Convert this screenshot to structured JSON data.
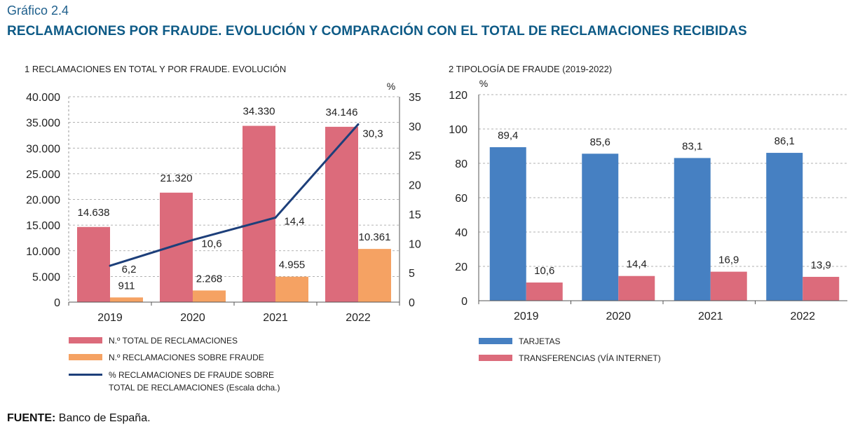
{
  "header": {
    "supertitle": "Gráfico 2.4",
    "title": "RECLAMACIONES POR FRAUDE. EVOLUCIÓN Y COMPARACIÓN CON EL TOTAL DE RECLAMACIONES RECIBIDAS"
  },
  "source": {
    "label": "FUENTE:",
    "text": "Banco de España."
  },
  "chart_data": [
    {
      "type": "bar",
      "title": "1  RECLAMACIONES EN TOTAL Y POR FRAUDE. EVOLUCIÓN",
      "categories": [
        "2019",
        "2020",
        "2021",
        "2022"
      ],
      "ylim": [
        0,
        40000
      ],
      "yticks": [
        "0",
        "5.000",
        "10.000",
        "15.000",
        "20.000",
        "25.000",
        "30.000",
        "35.000",
        "40.000"
      ],
      "y2lim": [
        0,
        35
      ],
      "y2ticks": [
        "0",
        "5",
        "10",
        "15",
        "20",
        "25",
        "30",
        "35"
      ],
      "y2label": "%",
      "grid": true,
      "series": [
        {
          "name": "N.º TOTAL DE RECLAMACIONES",
          "kind": "bar",
          "color": "#dc6b7b",
          "values": [
            14638,
            21320,
            34330,
            34146
          ],
          "labels": [
            "14.638",
            "21.320",
            "34.330",
            "34.146"
          ]
        },
        {
          "name": "N.º RECLAMACIONES SOBRE FRAUDE",
          "kind": "bar",
          "color": "#f5a263",
          "values": [
            911,
            2268,
            4955,
            10361
          ],
          "labels": [
            "911",
            "2.268",
            "4.955",
            "10.361"
          ]
        },
        {
          "name": "% RECLAMACIONES DE FRAUDE SOBRE",
          "name2": "TOTAL DE RECLAMACIONES (Escala dcha.)",
          "kind": "line",
          "axis": "right",
          "color": "#1d3f7a",
          "values": [
            6.2,
            10.6,
            14.4,
            30.3
          ],
          "labels": [
            "6,2",
            "10,6",
            "14,4",
            "30,3"
          ]
        }
      ],
      "legend": "bottom"
    },
    {
      "type": "bar",
      "title": "2  TIPOLOGÍA DE FRAUDE (2019-2022)",
      "categories": [
        "2019",
        "2020",
        "2021",
        "2022"
      ],
      "ylim": [
        0,
        120
      ],
      "yticks": [
        "0",
        "20",
        "40",
        "60",
        "80",
        "100",
        "120"
      ],
      "ylabel": "%",
      "grid": true,
      "series": [
        {
          "name": "TARJETAS",
          "color": "#4680c2",
          "values": [
            89.4,
            85.6,
            83.1,
            86.1
          ],
          "labels": [
            "89,4",
            "85,6",
            "83,1",
            "86,1"
          ]
        },
        {
          "name": "TRANSFERENCIAS (VÍA INTERNET)",
          "color": "#dc6b7b",
          "values": [
            10.6,
            14.4,
            16.9,
            13.9
          ],
          "labels": [
            "10,6",
            "14,4",
            "16,9",
            "13,9"
          ]
        }
      ],
      "legend": "bottom"
    }
  ]
}
